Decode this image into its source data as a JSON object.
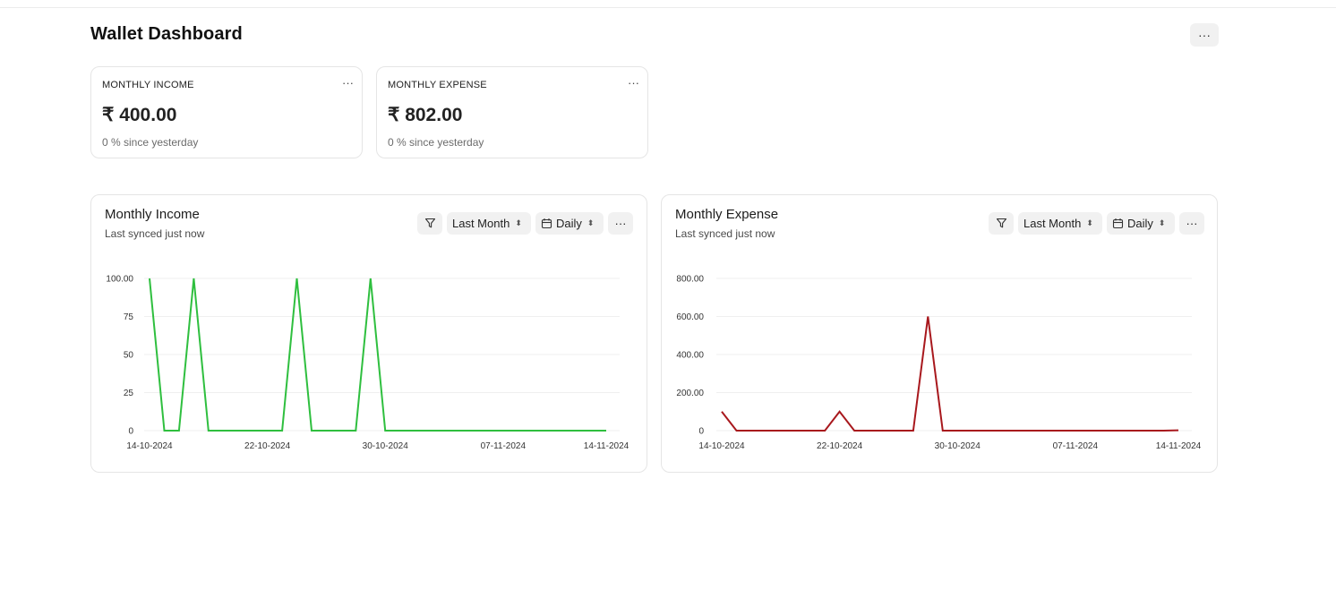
{
  "page": {
    "title": "Wallet Dashboard"
  },
  "cards": [
    {
      "label": "MONTHLY INCOME",
      "value": "₹ 400.00",
      "delta": "0 % since yesterday"
    },
    {
      "label": "MONTHLY EXPENSE",
      "value": "₹ 802.00",
      "delta": "0 % since yesterday"
    }
  ],
  "charts": [
    {
      "title": "Monthly Income",
      "subtitle": "Last synced just now",
      "filters": {
        "range": "Last Month",
        "interval": "Daily"
      }
    },
    {
      "title": "Monthly Expense",
      "subtitle": "Last synced just now",
      "filters": {
        "range": "Last Month",
        "interval": "Daily"
      }
    }
  ],
  "colors": {
    "income_line": "#2fbf3f",
    "expense_line": "#a8181d"
  },
  "chart_data": [
    {
      "type": "line",
      "title": "Monthly Income",
      "x_tick_labels": [
        "14-10-2024",
        "22-10-2024",
        "30-10-2024",
        "07-11-2024",
        "14-11-2024"
      ],
      "y_tick_labels": [
        "100.00",
        "75",
        "50",
        "25",
        "0"
      ],
      "ylim": [
        0,
        100
      ],
      "x": [
        "14-10-2024",
        "15-10-2024",
        "16-10-2024",
        "17-10-2024",
        "18-10-2024",
        "19-10-2024",
        "20-10-2024",
        "21-10-2024",
        "22-10-2024",
        "23-10-2024",
        "24-10-2024",
        "25-10-2024",
        "26-10-2024",
        "27-10-2024",
        "28-10-2024",
        "29-10-2024",
        "30-10-2024",
        "31-10-2024",
        "01-11-2024",
        "02-11-2024",
        "03-11-2024",
        "04-11-2024",
        "05-11-2024",
        "06-11-2024",
        "07-11-2024",
        "08-11-2024",
        "09-11-2024",
        "10-11-2024",
        "11-11-2024",
        "12-11-2024",
        "13-11-2024",
        "14-11-2024"
      ],
      "series": [
        {
          "values": [
            100,
            0,
            0,
            100,
            0,
            0,
            0,
            0,
            0,
            0,
            100,
            0,
            0,
            0,
            0,
            100,
            0,
            0,
            0,
            0,
            0,
            0,
            0,
            0,
            0,
            0,
            0,
            0,
            0,
            0,
            0,
            0
          ]
        }
      ],
      "grid": true
    },
    {
      "type": "line",
      "title": "Monthly Expense",
      "x_tick_labels": [
        "14-10-2024",
        "22-10-2024",
        "30-10-2024",
        "07-11-2024",
        "14-11-2024"
      ],
      "y_tick_labels": [
        "800.00",
        "600.00",
        "400.00",
        "200.00",
        "0"
      ],
      "ylim": [
        0,
        800
      ],
      "x": [
        "14-10-2024",
        "15-10-2024",
        "16-10-2024",
        "17-10-2024",
        "18-10-2024",
        "19-10-2024",
        "20-10-2024",
        "21-10-2024",
        "22-10-2024",
        "23-10-2024",
        "24-10-2024",
        "25-10-2024",
        "26-10-2024",
        "27-10-2024",
        "28-10-2024",
        "29-10-2024",
        "30-10-2024",
        "31-10-2024",
        "01-11-2024",
        "02-11-2024",
        "03-11-2024",
        "04-11-2024",
        "05-11-2024",
        "06-11-2024",
        "07-11-2024",
        "08-11-2024",
        "09-11-2024",
        "10-11-2024",
        "11-11-2024",
        "12-11-2024",
        "13-11-2024",
        "14-11-2024"
      ],
      "series": [
        {
          "values": [
            100,
            0,
            0,
            0,
            0,
            0,
            0,
            0,
            100,
            0,
            0,
            0,
            0,
            0,
            600,
            0,
            0,
            0,
            0,
            0,
            0,
            0,
            0,
            0,
            0,
            0,
            0,
            0,
            0,
            0,
            0,
            2
          ]
        }
      ],
      "grid": true
    }
  ]
}
